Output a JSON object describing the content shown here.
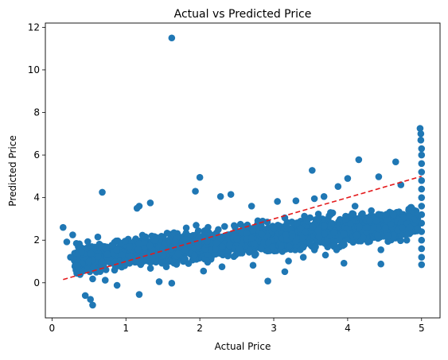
{
  "chart_data": {
    "type": "scatter",
    "title": "Actual vs Predicted Price",
    "xlabel": "Actual Price",
    "ylabel": "Predicted Price",
    "xlim": [
      -0.09,
      5.25
    ],
    "ylim": [
      -1.65,
      12.2
    ],
    "x_ticks": [
      "0",
      "1",
      "2",
      "3",
      "4",
      "5"
    ],
    "y_ticks": [
      "0",
      "2",
      "4",
      "6",
      "8",
      "10",
      "12"
    ],
    "grid": false,
    "legend": "none",
    "point_color": "#1f77b4",
    "reference_line": {
      "style": "dashed",
      "color": "#e41a1c",
      "from": [
        0.15,
        0.15
      ],
      "to": [
        5.0,
        5.0
      ]
    },
    "series": [
      {
        "points": [
          [
            1.62,
            11.5
          ],
          [
            0.68,
            4.25
          ],
          [
            1.18,
            3.6
          ],
          [
            1.33,
            3.75
          ],
          [
            1.15,
            3.5
          ],
          [
            1.94,
            4.3
          ],
          [
            2.0,
            4.95
          ],
          [
            2.28,
            4.05
          ],
          [
            2.42,
            4.15
          ],
          [
            2.7,
            3.6
          ],
          [
            3.52,
            5.28
          ],
          [
            3.87,
            4.52
          ],
          [
            4.0,
            4.9
          ],
          [
            4.15,
            5.78
          ],
          [
            4.42,
            4.98
          ],
          [
            4.65,
            5.68
          ],
          [
            0.15,
            2.6
          ],
          [
            0.2,
            1.92
          ],
          [
            0.28,
            2.25
          ],
          [
            0.33,
            1.85
          ],
          [
            0.45,
            -0.6
          ],
          [
            0.52,
            -0.78
          ],
          [
            0.55,
            -1.05
          ],
          [
            1.18,
            -0.55
          ],
          [
            1.62,
            -0.02
          ],
          [
            2.92,
            0.08
          ],
          [
            2.05,
            0.55
          ],
          [
            2.72,
            0.82
          ],
          [
            3.15,
            0.52
          ],
          [
            3.4,
            1.2
          ],
          [
            3.05,
            3.82
          ],
          [
            3.3,
            3.85
          ],
          [
            3.55,
            3.95
          ],
          [
            3.68,
            4.05
          ],
          [
            4.2,
            3.25
          ],
          [
            4.3,
            2.92
          ],
          [
            4.45,
            1.55
          ],
          [
            4.45,
            0.88
          ],
          [
            3.95,
            0.92
          ],
          [
            3.85,
            1.55
          ],
          [
            3.2,
            1.02
          ],
          [
            3.7,
            1.3
          ],
          [
            0.35,
            0.8
          ],
          [
            0.55,
            0.18
          ],
          [
            0.72,
            0.12
          ],
          [
            0.88,
            -0.12
          ],
          [
            1.45,
            0.05
          ],
          [
            2.3,
            0.75
          ],
          [
            0.25,
            1.2
          ],
          [
            0.4,
            1.45
          ],
          [
            4.98,
            7.25
          ],
          [
            4.99,
            7.0
          ],
          [
            4.99,
            6.7
          ],
          [
            5.0,
            6.3
          ],
          [
            5.0,
            6.0
          ],
          [
            5.0,
            5.6
          ],
          [
            5.0,
            5.2
          ],
          [
            5.0,
            4.8
          ],
          [
            5.0,
            4.4
          ],
          [
            5.0,
            4.0
          ],
          [
            5.0,
            3.6
          ],
          [
            5.0,
            3.2
          ],
          [
            5.0,
            2.8
          ],
          [
            5.0,
            2.4
          ],
          [
            5.0,
            2.0
          ],
          [
            5.0,
            1.6
          ],
          [
            5.0,
            1.2
          ],
          [
            5.0,
            0.85
          ],
          [
            4.72,
            4.6
          ],
          [
            4.8,
            2.0
          ],
          [
            4.62,
            3.2
          ],
          [
            4.55,
            2.2
          ],
          [
            4.35,
            2.6
          ],
          [
            4.1,
            3.6
          ],
          [
            3.95,
            2.3
          ],
          [
            3.75,
            3.15
          ],
          [
            3.6,
            2.45
          ],
          [
            3.45,
            2.9
          ],
          [
            3.3,
            1.95
          ],
          [
            3.15,
            3.05
          ],
          [
            3.0,
            2.55
          ],
          [
            2.85,
            2.9
          ],
          [
            2.7,
            2.1
          ],
          [
            2.55,
            2.75
          ],
          [
            2.4,
            1.75
          ],
          [
            2.25,
            2.5
          ],
          [
            2.1,
            1.95
          ],
          [
            1.95,
            2.7
          ],
          [
            1.8,
            1.55
          ],
          [
            1.65,
            2.35
          ],
          [
            1.5,
            1.6
          ],
          [
            1.35,
            2.2
          ],
          [
            1.2,
            1.1
          ],
          [
            1.05,
            1.7
          ],
          [
            0.9,
            0.8
          ],
          [
            0.75,
            1.35
          ],
          [
            0.6,
            0.5
          ],
          [
            0.5,
            1.0
          ],
          [
            0.42,
            0.55
          ],
          [
            0.62,
            2.15
          ]
        ]
      }
    ],
    "cloud_bands": [
      {
        "x": [
          0.3,
          5.0
        ],
        "center": "0.38*x + 0.98",
        "spread": 0.72,
        "count": 2400
      }
    ]
  }
}
